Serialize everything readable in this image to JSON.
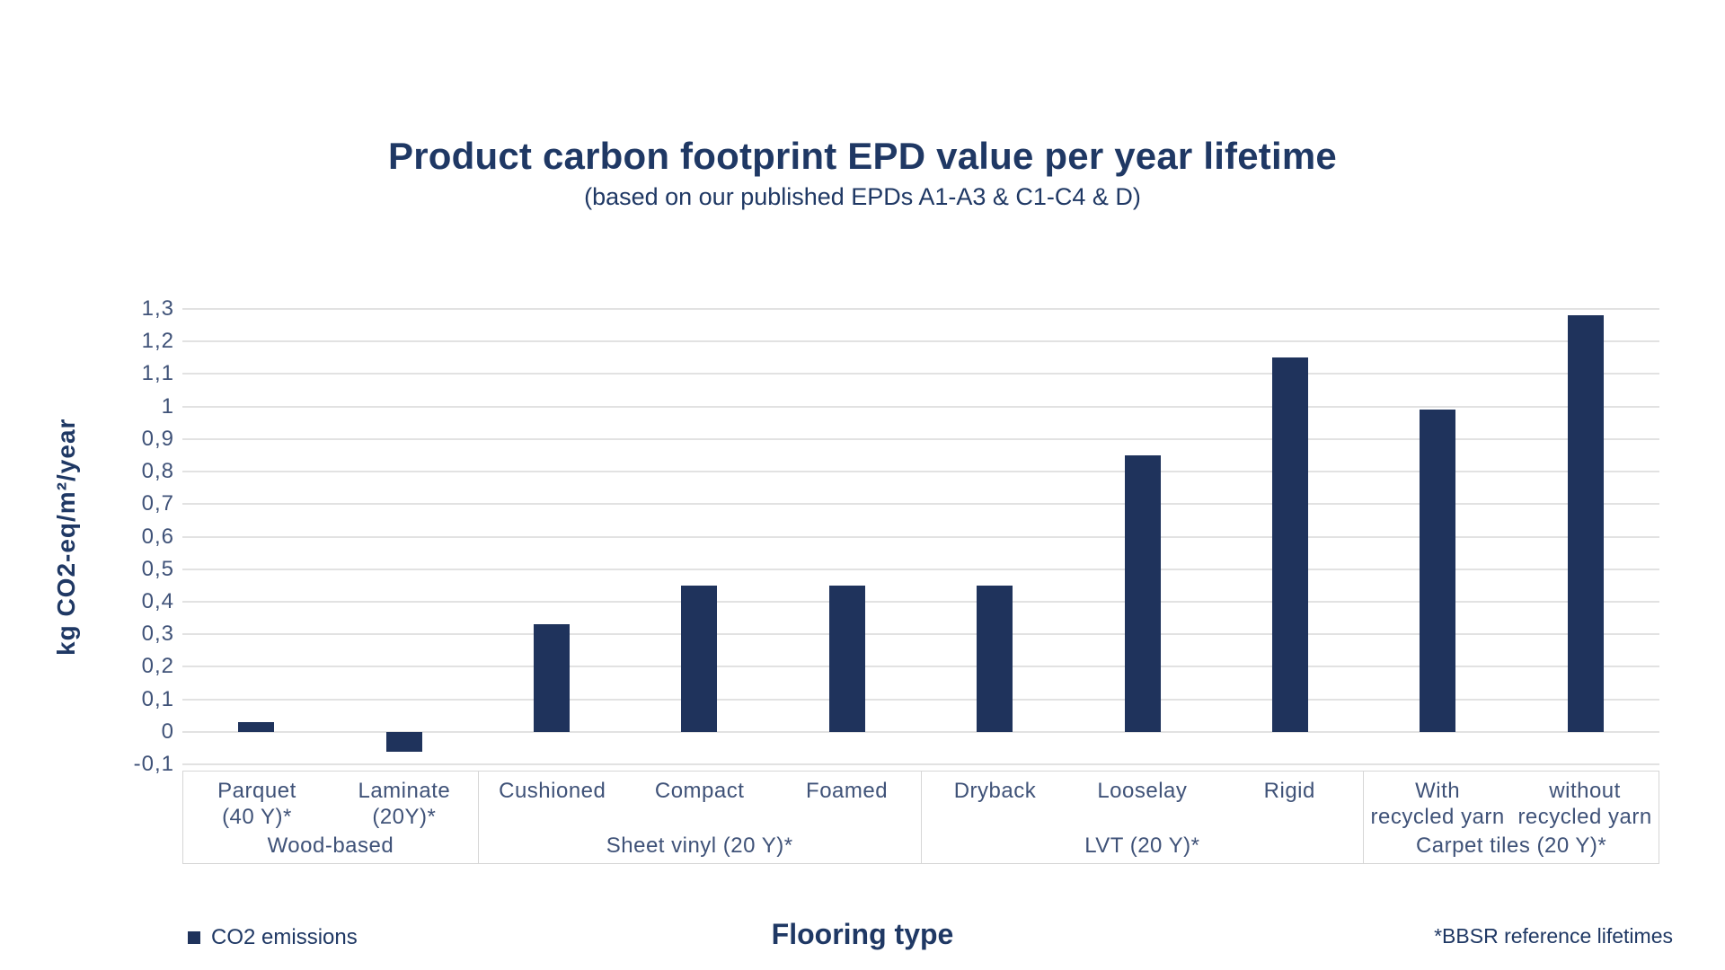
{
  "page": {
    "title": "Product carbon footprint EPD value per year lifetime",
    "subtitle": "(based on our published EPDs A1-A3 & C1-C4 & D)"
  },
  "chart_data": {
    "type": "bar",
    "title": "Product carbon footprint EPD value per year lifetime",
    "subtitle": "(based on our published EPDs A1-A3 & C1-C4 & D)",
    "ylabel": "kg CO2-eq/m²/year",
    "xlabel": "Flooring type",
    "ylim": [
      -0.1,
      1.3
    ],
    "grid": "horizontal",
    "yticks": [
      {
        "value": 1.3,
        "label": "1,3"
      },
      {
        "value": 1.2,
        "label": "1,2"
      },
      {
        "value": 1.1,
        "label": "1,1"
      },
      {
        "value": 1.0,
        "label": "1"
      },
      {
        "value": 0.9,
        "label": "0,9"
      },
      {
        "value": 0.8,
        "label": "0,8"
      },
      {
        "value": 0.7,
        "label": "0,7"
      },
      {
        "value": 0.6,
        "label": "0,6"
      },
      {
        "value": 0.5,
        "label": "0,5"
      },
      {
        "value": 0.4,
        "label": "0,4"
      },
      {
        "value": 0.3,
        "label": "0,3"
      },
      {
        "value": 0.2,
        "label": "0,2"
      },
      {
        "value": 0.1,
        "label": "0,1"
      },
      {
        "value": 0.0,
        "label": "0"
      },
      {
        "value": -0.1,
        "label": "-0,1"
      }
    ],
    "series_name": "CO2 emissions",
    "groups": [
      {
        "label": "Wood-based",
        "categories": [
          "Parquet\n(40 Y)*",
          "Laminate\n(20Y)*"
        ],
        "values": [
          0.03,
          -0.06
        ]
      },
      {
        "label": "Sheet vinyl (20 Y)*",
        "categories": [
          "Cushioned",
          "Compact",
          "Foamed"
        ],
        "values": [
          0.33,
          0.45,
          0.45
        ]
      },
      {
        "label": "LVT (20 Y)*",
        "categories": [
          "Dryback",
          "Looselay",
          "Rigid"
        ],
        "values": [
          0.45,
          0.85,
          1.15
        ]
      },
      {
        "label": "Carpet tiles (20 Y)*",
        "categories": [
          "With\nrecycled yarn",
          "without\nrecycled yarn"
        ],
        "values": [
          0.99,
          1.28
        ]
      }
    ],
    "legend": {
      "position": "bottom-left",
      "entries": [
        "CO2 emissions"
      ]
    },
    "footnote": "*BBSR reference lifetimes"
  },
  "colors": {
    "bar": "#1f335c",
    "heading_text": "#1f3864",
    "axis_text": "#3f5278",
    "gridline": "#e2e2e2",
    "band_border": "#d6d6d6"
  }
}
